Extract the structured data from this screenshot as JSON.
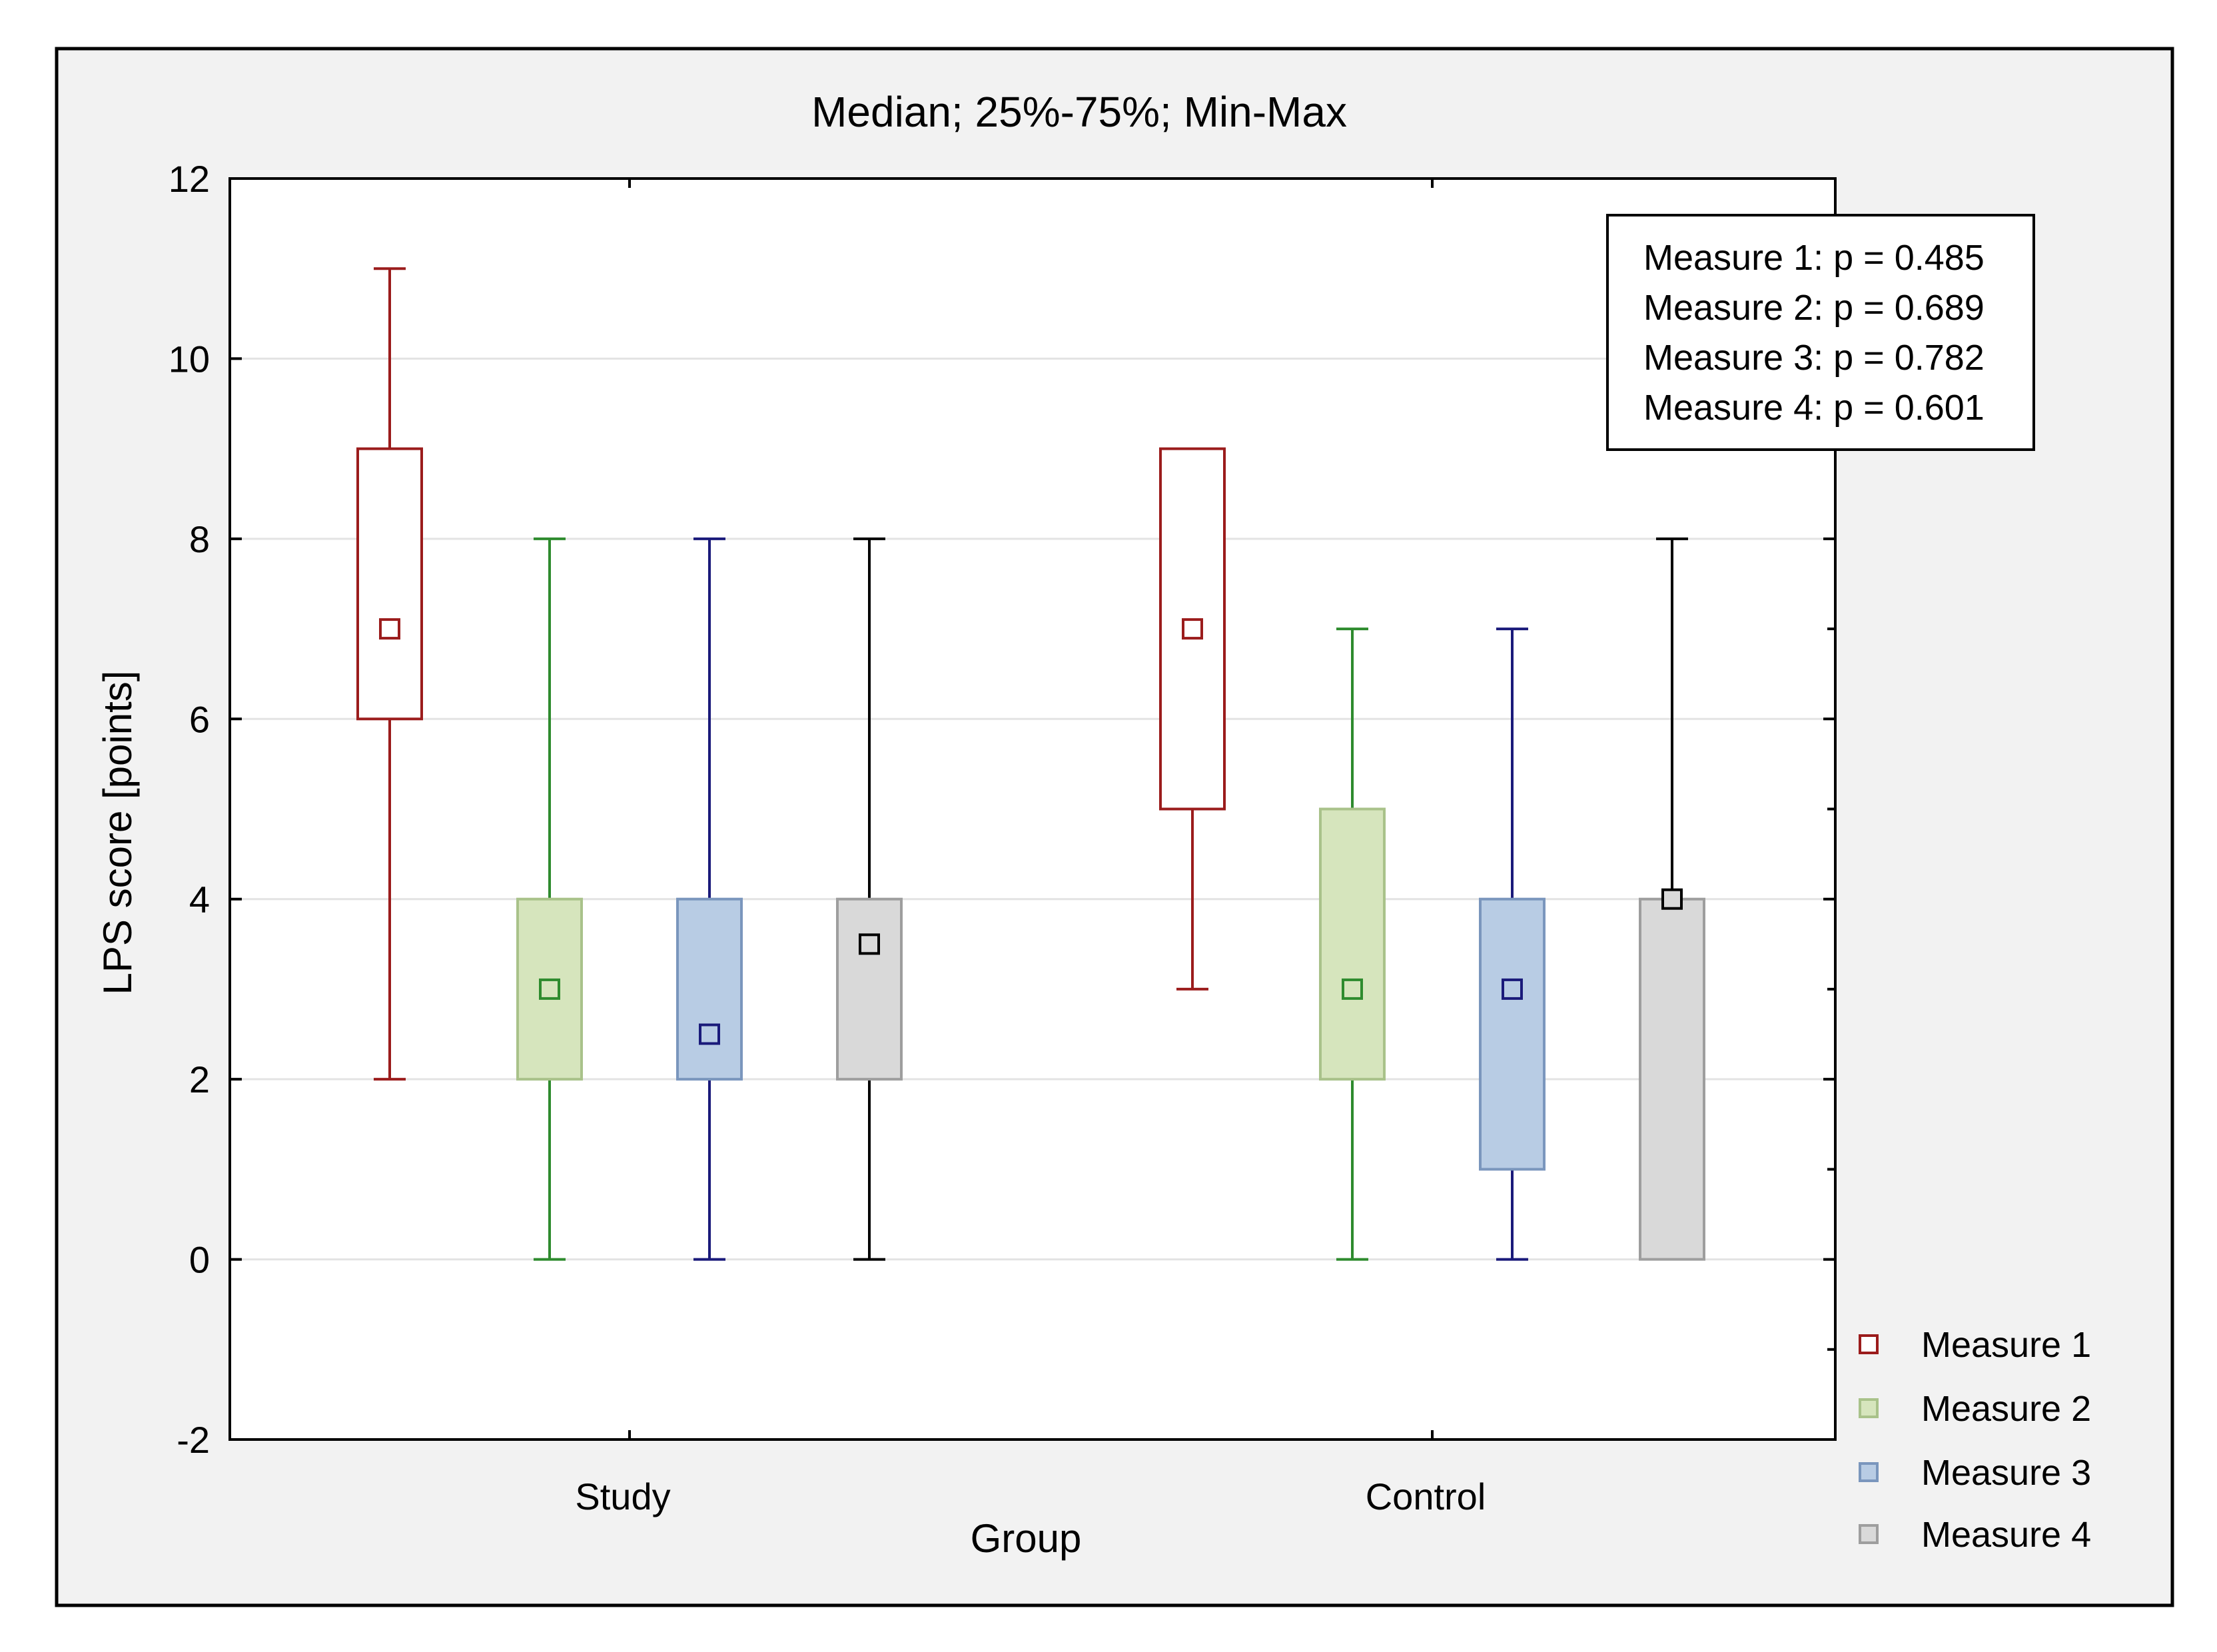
{
  "chart_data": {
    "type": "boxplot",
    "title": "Median; 25%-75%; Min-Max",
    "xlabel": "Group",
    "ylabel": "LPS score [points]",
    "ylim": [
      -2,
      12
    ],
    "yticks": [
      -2,
      0,
      2,
      4,
      6,
      8,
      10,
      12
    ],
    "ytick_labels": [
      "-2",
      "0",
      "2",
      "4",
      "6",
      "8",
      "10",
      "12"
    ],
    "grid": true,
    "legend_position": "right-bottom",
    "categories": [
      "Study",
      "Control"
    ],
    "series": [
      {
        "name": "Measure 1",
        "color": "#9b1c1c",
        "fill": "#ffffff",
        "marker_fill": "#ffffff",
        "stats": [
          {
            "min": 2,
            "q1": 6,
            "median": 7,
            "q3": 9,
            "max": 11
          },
          {
            "min": 3,
            "q1": 5,
            "median": 7,
            "q3": 9,
            "max": 9
          }
        ]
      },
      {
        "name": "Measure 2",
        "color": "#2e8b2e",
        "fill": "#d6e5bd",
        "box_stroke": "#a9c28a",
        "marker_fill": "#d6e5bd",
        "stats": [
          {
            "min": 0,
            "q1": 2,
            "median": 3,
            "q3": 4,
            "max": 8
          },
          {
            "min": 0,
            "q1": 2,
            "median": 3,
            "q3": 5,
            "max": 7
          }
        ]
      },
      {
        "name": "Measure 3",
        "color": "#1a1a7a",
        "fill": "#b8cce4",
        "box_stroke": "#7a96bd",
        "marker_fill": "#b8cce4",
        "stats": [
          {
            "min": 0,
            "q1": 2,
            "median": 2.5,
            "q3": 4,
            "max": 8
          },
          {
            "min": 0,
            "q1": 1,
            "median": 3,
            "q3": 4,
            "max": 7
          }
        ]
      },
      {
        "name": "Measure 4",
        "color": "#000000",
        "fill": "#d9d9d9",
        "box_stroke": "#9e9e9e",
        "marker_fill": "#d9d9d9",
        "stats": [
          {
            "min": 0,
            "q1": 2,
            "median": 3.5,
            "q3": 4,
            "max": 8
          },
          {
            "min": 0,
            "q1": 0,
            "median": 4,
            "q3": 4,
            "max": 8
          }
        ]
      }
    ],
    "annotations": [
      "Measure 1: p = 0.485",
      "Measure 2: p = 0.689",
      "Measure 3: p = 0.782",
      "Measure 4: p = 0.601"
    ]
  }
}
